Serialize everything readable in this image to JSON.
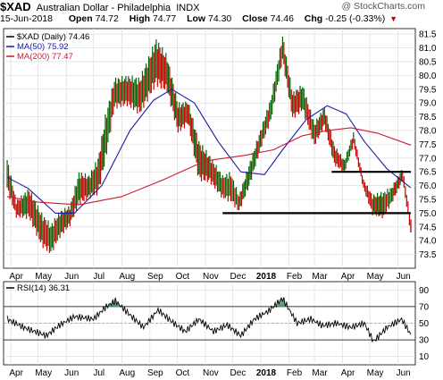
{
  "header": {
    "symbol": "$XAD",
    "name": "Australian Dollar - Philadelphia",
    "exchange": "INDX",
    "date": "15-Jun-2018",
    "open_label": "Open",
    "open": "74.72",
    "high_label": "High",
    "high": "74.77",
    "low_label": "Low",
    "low": "74.30",
    "close_label": "Close",
    "close": "74.46",
    "chg_label": "Chg",
    "chg": "-0.25 (-0.33%)",
    "brand": "@ StockCharts.com"
  },
  "colors": {
    "up": "#006400",
    "down": "#cc0000",
    "ma50": "#1a1aa6",
    "ma200": "#cc1a33",
    "grid": "#d9d9d9",
    "rsi_line": "#000000",
    "rsi_fill": "#5f9e7a"
  },
  "chart_data": [
    {
      "type": "line",
      "title": "$XAD (Daily) 74.46",
      "series": [
        {
          "name": "$XAD (Daily) 74.46",
          "kind": "ohlc",
          "values": [
            {
              "x": "2017-03-28",
              "high": 76.9,
              "low": 75.9
            },
            {
              "x": "2017-04-07",
              "high": 75.4,
              "low": 74.9
            },
            {
              "x": "2017-04-21",
              "high": 75.8,
              "low": 74.9
            },
            {
              "x": "2017-05-05",
              "high": 74.9,
              "low": 73.9
            },
            {
              "x": "2017-05-15",
              "high": 74.5,
              "low": 73.6
            },
            {
              "x": "2017-05-25",
              "high": 75.0,
              "low": 74.2
            },
            {
              "x": "2017-06-05",
              "high": 75.2,
              "low": 74.6
            },
            {
              "x": "2017-06-15",
              "high": 76.4,
              "low": 75.4
            },
            {
              "x": "2017-06-26",
              "high": 76.3,
              "low": 75.6
            },
            {
              "x": "2017-07-06",
              "high": 76.9,
              "low": 75.8
            },
            {
              "x": "2017-07-14",
              "high": 78.4,
              "low": 77.0
            },
            {
              "x": "2017-07-24",
              "high": 79.8,
              "low": 78.9
            },
            {
              "x": "2017-08-07",
              "high": 79.9,
              "low": 79.0
            },
            {
              "x": "2017-08-21",
              "high": 79.8,
              "low": 78.7
            },
            {
              "x": "2017-09-08",
              "high": 81.2,
              "low": 79.8
            },
            {
              "x": "2017-09-20",
              "high": 80.6,
              "low": 79.5
            },
            {
              "x": "2017-10-02",
              "high": 78.9,
              "low": 78.0
            },
            {
              "x": "2017-10-13",
              "high": 79.0,
              "low": 78.3
            },
            {
              "x": "2017-10-25",
              "high": 77.5,
              "low": 76.3
            },
            {
              "x": "2017-11-06",
              "high": 77.0,
              "low": 76.2
            },
            {
              "x": "2017-11-20",
              "high": 76.3,
              "low": 75.6
            },
            {
              "x": "2017-11-29",
              "high": 76.4,
              "low": 75.5
            },
            {
              "x": "2017-12-08",
              "high": 75.6,
              "low": 75.1
            },
            {
              "x": "2017-12-19",
              "high": 76.7,
              "low": 76.0
            },
            {
              "x": "2018-01-02",
              "high": 78.1,
              "low": 77.5
            },
            {
              "x": "2018-01-12",
              "high": 79.1,
              "low": 78.4
            },
            {
              "x": "2018-01-25",
              "high": 81.4,
              "low": 80.6
            },
            {
              "x": "2018-02-05",
              "high": 79.3,
              "low": 78.5
            },
            {
              "x": "2018-02-16",
              "high": 79.6,
              "low": 78.8
            },
            {
              "x": "2018-03-01",
              "high": 78.2,
              "low": 77.5
            },
            {
              "x": "2018-03-12",
              "high": 78.8,
              "low": 78.2
            },
            {
              "x": "2018-03-23",
              "high": 77.4,
              "low": 76.8
            },
            {
              "x": "2018-04-03",
              "high": 76.9,
              "low": 76.5
            },
            {
              "x": "2018-04-13",
              "high": 77.9,
              "low": 77.5
            },
            {
              "x": "2018-04-24",
              "high": 76.2,
              "low": 75.9
            },
            {
              "x": "2018-05-04",
              "high": 75.6,
              "low": 75.0
            },
            {
              "x": "2018-05-16",
              "high": 75.7,
              "low": 74.9
            },
            {
              "x": "2018-05-25",
              "high": 75.9,
              "low": 75.4
            },
            {
              "x": "2018-06-06",
              "high": 76.6,
              "low": 76.2
            },
            {
              "x": "2018-06-15",
              "high": 74.77,
              "low": 74.3
            }
          ]
        },
        {
          "name": "MA(50) 75.92",
          "values": [
            {
              "x": "2017-03-28",
              "y": 76.3
            },
            {
              "x": "2017-04-20",
              "y": 75.9
            },
            {
              "x": "2017-05-20",
              "y": 75.0
            },
            {
              "x": "2017-06-10",
              "y": 75.0
            },
            {
              "x": "2017-07-10",
              "y": 76.0
            },
            {
              "x": "2017-08-10",
              "y": 78.0
            },
            {
              "x": "2017-09-05",
              "y": 79.1
            },
            {
              "x": "2017-09-25",
              "y": 79.5
            },
            {
              "x": "2017-10-20",
              "y": 79.0
            },
            {
              "x": "2017-11-15",
              "y": 77.6
            },
            {
              "x": "2017-12-10",
              "y": 76.5
            },
            {
              "x": "2018-01-05",
              "y": 76.4
            },
            {
              "x": "2018-01-25",
              "y": 77.3
            },
            {
              "x": "2018-02-20",
              "y": 78.4
            },
            {
              "x": "2018-03-15",
              "y": 78.9
            },
            {
              "x": "2018-04-05",
              "y": 78.6
            },
            {
              "x": "2018-04-25",
              "y": 77.6
            },
            {
              "x": "2018-05-20",
              "y": 76.6
            },
            {
              "x": "2018-06-15",
              "y": 75.92
            }
          ]
        },
        {
          "name": "MA(200) 77.47",
          "values": [
            {
              "x": "2017-03-28",
              "y": 75.6
            },
            {
              "x": "2017-05-01",
              "y": 75.4
            },
            {
              "x": "2017-06-15",
              "y": 75.3
            },
            {
              "x": "2017-08-01",
              "y": 75.6
            },
            {
              "x": "2017-09-15",
              "y": 76.2
            },
            {
              "x": "2017-11-01",
              "y": 76.9
            },
            {
              "x": "2017-12-15",
              "y": 77.1
            },
            {
              "x": "2018-01-15",
              "y": 77.3
            },
            {
              "x": "2018-02-15",
              "y": 77.8
            },
            {
              "x": "2018-03-15",
              "y": 78.0
            },
            {
              "x": "2018-04-10",
              "y": 78.1
            },
            {
              "x": "2018-05-10",
              "y": 77.9
            },
            {
              "x": "2018-06-15",
              "y": 77.47
            }
          ]
        }
      ],
      "horizontal_lines": [
        {
          "y": 75.0,
          "from": "2017-11-20",
          "to": "2018-06-15"
        },
        {
          "y": 76.5,
          "from": "2018-03-20",
          "to": "2018-06-15"
        }
      ],
      "ylim": [
        73.0,
        81.7
      ],
      "yticks": [
        "73.5",
        "74.0",
        "74.5",
        "75.0",
        "75.5",
        "76.0",
        "76.5",
        "77.0",
        "77.5",
        "78.0",
        "78.5",
        "79.0",
        "79.5",
        "80.0",
        "80.5",
        "81.0",
        "81.5"
      ],
      "xticks": [
        "Apr",
        "May",
        "Jun",
        "Jul",
        "Aug",
        "Sep",
        "Oct",
        "Nov",
        "Dec",
        "2018",
        "Feb",
        "Mar",
        "Apr",
        "May",
        "Jun"
      ],
      "grid": true,
      "legend_position": "top-left"
    },
    {
      "type": "line",
      "title": "RSI(14) 36.31",
      "series": [
        {
          "name": "RSI(14) 36.31",
          "values": [
            {
              "x": "2017-03-28",
              "y": 55
            },
            {
              "x": "2017-04-15",
              "y": 45
            },
            {
              "x": "2017-05-10",
              "y": 35
            },
            {
              "x": "2017-05-25",
              "y": 48
            },
            {
              "x": "2017-06-10",
              "y": 58
            },
            {
              "x": "2017-07-01",
              "y": 55
            },
            {
              "x": "2017-07-15",
              "y": 70
            },
            {
              "x": "2017-07-25",
              "y": 77
            },
            {
              "x": "2017-08-10",
              "y": 60
            },
            {
              "x": "2017-08-25",
              "y": 45
            },
            {
              "x": "2017-09-10",
              "y": 66
            },
            {
              "x": "2017-09-25",
              "y": 52
            },
            {
              "x": "2017-10-10",
              "y": 40
            },
            {
              "x": "2017-10-25",
              "y": 55
            },
            {
              "x": "2017-11-10",
              "y": 40
            },
            {
              "x": "2017-11-25",
              "y": 48
            },
            {
              "x": "2017-12-10",
              "y": 35
            },
            {
              "x": "2017-12-25",
              "y": 55
            },
            {
              "x": "2018-01-10",
              "y": 65
            },
            {
              "x": "2018-01-25",
              "y": 80
            },
            {
              "x": "2018-02-10",
              "y": 50
            },
            {
              "x": "2018-02-25",
              "y": 55
            },
            {
              "x": "2018-03-10",
              "y": 47
            },
            {
              "x": "2018-03-25",
              "y": 50
            },
            {
              "x": "2018-04-10",
              "y": 45
            },
            {
              "x": "2018-04-25",
              "y": 50
            },
            {
              "x": "2018-05-05",
              "y": 28
            },
            {
              "x": "2018-05-20",
              "y": 45
            },
            {
              "x": "2018-06-05",
              "y": 55
            },
            {
              "x": "2018-06-15",
              "y": 36.31
            }
          ]
        }
      ],
      "ylim": [
        0,
        100
      ],
      "yticks": [
        "10",
        "30",
        "50",
        "70",
        "90"
      ],
      "reference_lines": [
        30,
        70
      ],
      "xticks": [
        "Apr",
        "May",
        "Jun",
        "Jul",
        "Aug",
        "Sep",
        "Oct",
        "Nov",
        "Dec",
        "2018",
        "Feb",
        "Mar",
        "Apr",
        "May",
        "Jun"
      ],
      "grid": true
    }
  ]
}
